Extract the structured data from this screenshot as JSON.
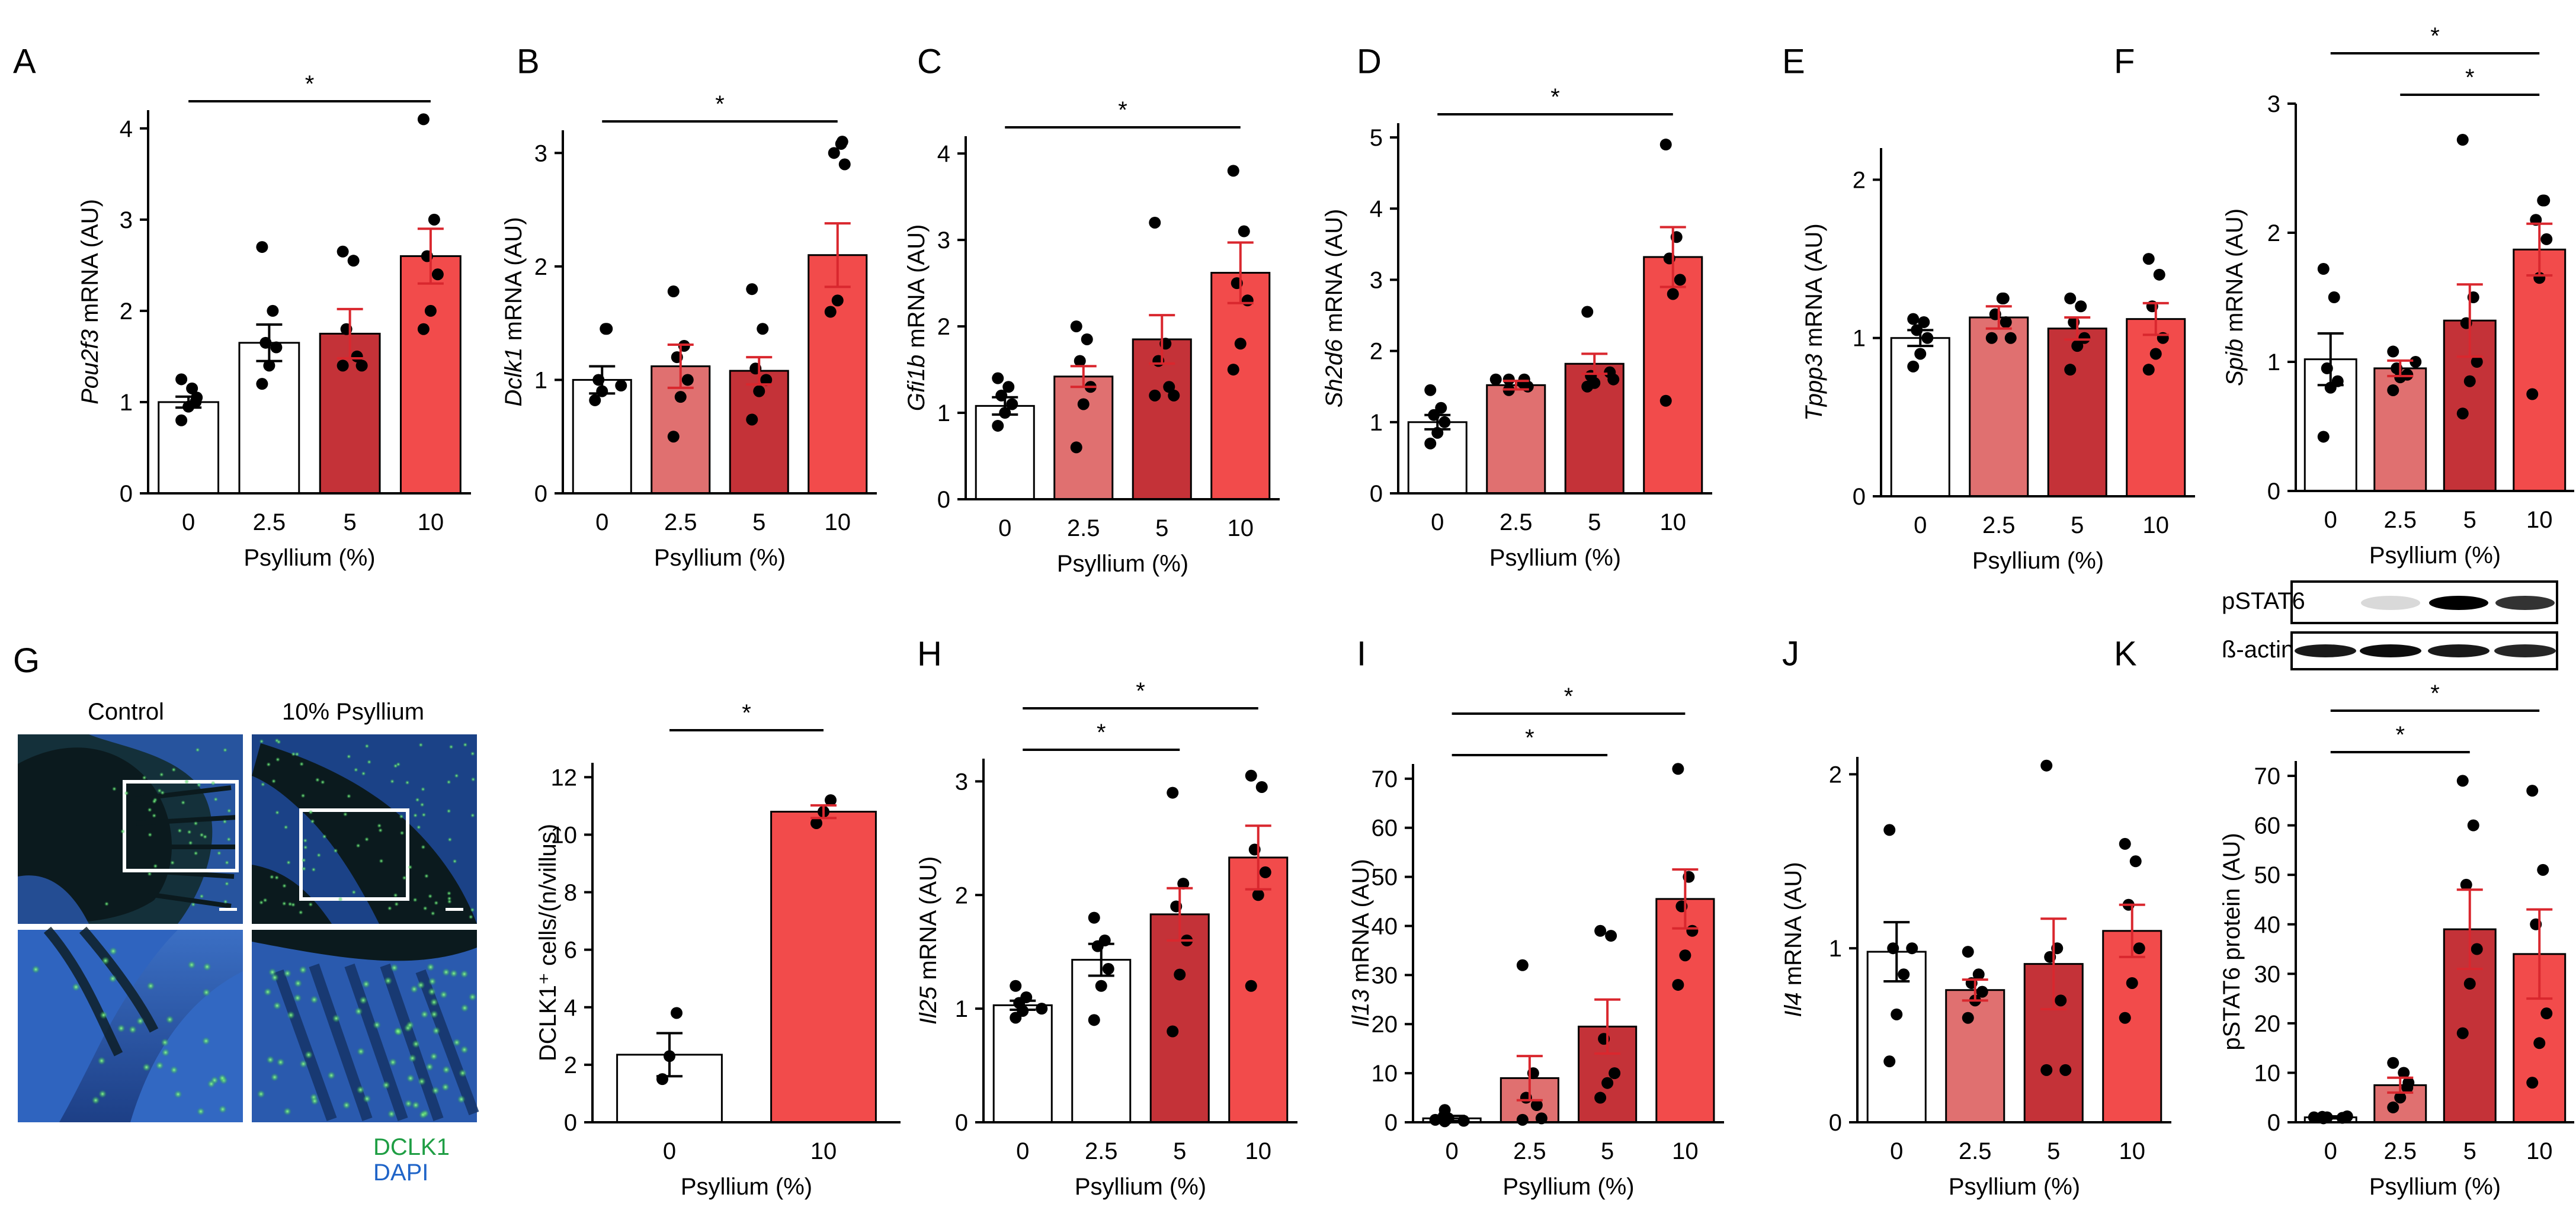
{
  "colors": {
    "c0": "#ffffff",
    "c1": "#e07070",
    "c2": "#c43238",
    "c3": "#f24b4b",
    "err": "#d9272e",
    "dot": "#000000",
    "dclk1": "#1f9e44",
    "dapi": "#1f64c8",
    "tissue_bg": "#0d1f1a"
  },
  "chart_data": [
    {
      "id": "A",
      "type": "bar",
      "panel_label": "A",
      "ylabel_italic": "Pou2f3",
      "ylabel_rest": " mRNA (AU)",
      "xlabel": "Psyllium (%)",
      "categories": [
        "0",
        "2.5",
        "5",
        "10"
      ],
      "ylim": [
        0,
        4.2
      ],
      "yticks": [
        0,
        1,
        2,
        3,
        4
      ],
      "values": [
        1.0,
        1.65,
        1.75,
        2.6
      ],
      "errors": [
        0.06,
        0.2,
        0.27,
        0.3
      ],
      "fill_colors": [
        "#ffffff",
        "#ffffff",
        "#c43238",
        "#f24b4b"
      ],
      "points": [
        [
          0.8,
          0.95,
          1.0,
          1.05,
          1.15,
          1.25
        ],
        [
          1.2,
          1.4,
          1.6,
          1.65,
          2.0,
          2.7
        ],
        [
          1.4,
          1.4,
          1.5,
          1.8,
          2.55,
          2.65
        ],
        [
          1.8,
          2.0,
          2.4,
          2.6,
          3.0,
          4.1
        ]
      ],
      "sig": [
        {
          "from": 0,
          "to": 3,
          "label": "*"
        }
      ]
    },
    {
      "id": "B",
      "type": "bar",
      "panel_label": "B",
      "ylabel_italic": "Dclk1",
      "ylabel_rest": " mRNA (AU)",
      "xlabel": "Psyllium (%)",
      "categories": [
        "0",
        "2.5",
        "5",
        "10"
      ],
      "ylim": [
        0,
        3.2
      ],
      "yticks": [
        0,
        1,
        2,
        3
      ],
      "values": [
        1.0,
        1.12,
        1.08,
        2.1
      ],
      "errors": [
        0.12,
        0.19,
        0.12,
        0.28
      ],
      "fill_colors": [
        "#ffffff",
        "#e07070",
        "#c43238",
        "#f24b4b"
      ],
      "points": [
        [
          0.82,
          0.9,
          0.95,
          1.0,
          1.45,
          1.45
        ],
        [
          0.5,
          0.85,
          1.0,
          1.2,
          1.3,
          1.78
        ],
        [
          0.65,
          0.9,
          1.0,
          1.1,
          1.45,
          1.8
        ],
        [
          1.6,
          1.7,
          2.9,
          3.0,
          3.08,
          3.1
        ]
      ],
      "sig": [
        {
          "from": 0,
          "to": 3,
          "label": "*"
        }
      ]
    },
    {
      "id": "C",
      "type": "bar",
      "panel_label": "C",
      "ylabel_italic": "Gfi1b",
      "ylabel_rest": " mRNA (AU)",
      "xlabel": "Psyllium (%)",
      "categories": [
        "0",
        "2.5",
        "5",
        "10"
      ],
      "ylim": [
        0,
        4.2
      ],
      "yticks": [
        0,
        1,
        2,
        3,
        4
      ],
      "values": [
        1.08,
        1.42,
        1.85,
        2.62
      ],
      "errors": [
        0.1,
        0.12,
        0.28,
        0.35
      ],
      "fill_colors": [
        "#ffffff",
        "#e07070",
        "#c43238",
        "#f24b4b"
      ],
      "points": [
        [
          0.85,
          1.0,
          1.1,
          1.2,
          1.3,
          1.4
        ],
        [
          0.6,
          1.1,
          1.3,
          1.6,
          1.85,
          2.0
        ],
        [
          1.2,
          1.2,
          1.3,
          1.6,
          1.8,
          3.2
        ],
        [
          1.5,
          1.8,
          2.3,
          2.5,
          3.1,
          3.8
        ]
      ],
      "sig": [
        {
          "from": 0,
          "to": 3,
          "label": "*"
        }
      ]
    },
    {
      "id": "D",
      "type": "bar",
      "panel_label": "D",
      "ylabel_italic": "Sh2d6",
      "ylabel_rest": " mRNA (AU)",
      "xlabel": "Psyllium (%)",
      "categories": [
        "0",
        "2.5",
        "5",
        "10"
      ],
      "ylim": [
        0,
        5.2
      ],
      "yticks": [
        0,
        1,
        2,
        3,
        4,
        5
      ],
      "values": [
        1.0,
        1.52,
        1.82,
        3.32
      ],
      "errors": [
        0.1,
        0.06,
        0.14,
        0.42
      ],
      "fill_colors": [
        "#ffffff",
        "#e07070",
        "#c43238",
        "#f24b4b"
      ],
      "points": [
        [
          0.7,
          0.85,
          1.0,
          1.1,
          1.2,
          1.45
        ],
        [
          1.45,
          1.5,
          1.55,
          1.6,
          1.6,
          1.6
        ],
        [
          1.5,
          1.55,
          1.6,
          1.65,
          1.7,
          2.55
        ],
        [
          1.3,
          2.8,
          3.0,
          3.3,
          3.6,
          4.9
        ]
      ],
      "sig": [
        {
          "from": 0,
          "to": 3,
          "label": "*"
        }
      ]
    },
    {
      "id": "E",
      "type": "bar",
      "panel_label": "E",
      "ylabel_italic": "Tppp3",
      "ylabel_rest": " mRNA (AU)",
      "xlabel": "Psyllium (%)",
      "categories": [
        "0",
        "2.5",
        "5",
        "10"
      ],
      "ylim": [
        0,
        2.2
      ],
      "yticks": [
        0,
        1,
        2
      ],
      "values": [
        1.0,
        1.13,
        1.06,
        1.12
      ],
      "errors": [
        0.05,
        0.07,
        0.07,
        0.1
      ],
      "fill_colors": [
        "#ffffff",
        "#e07070",
        "#c43238",
        "#f24b4b"
      ],
      "points": [
        [
          0.82,
          0.9,
          1.0,
          1.05,
          1.1,
          1.12
        ],
        [
          1.0,
          1.0,
          1.1,
          1.15,
          1.25,
          1.25
        ],
        [
          0.8,
          0.95,
          1.0,
          1.1,
          1.2,
          1.25
        ],
        [
          0.8,
          0.9,
          1.0,
          1.2,
          1.4,
          1.5
        ]
      ],
      "sig": []
    },
    {
      "id": "F",
      "type": "bar",
      "panel_label": "F",
      "ylabel_italic": "Spib",
      "ylabel_rest": " mRNA (AU)",
      "xlabel": "Psyllium (%)",
      "categories": [
        "0",
        "2.5",
        "5",
        "10"
      ],
      "ylim": [
        0,
        3.0
      ],
      "yticks": [
        0,
        1,
        2,
        3
      ],
      "values": [
        1.02,
        0.95,
        1.32,
        1.87
      ],
      "errors": [
        0.2,
        0.06,
        0.28,
        0.2
      ],
      "fill_colors": [
        "#ffffff",
        "#e07070",
        "#c43238",
        "#f24b4b"
      ],
      "points": [
        [
          0.42,
          0.8,
          0.85,
          0.95,
          1.5,
          1.72
        ],
        [
          0.78,
          0.88,
          0.9,
          0.95,
          1.0,
          1.08
        ],
        [
          0.6,
          0.85,
          1.0,
          1.3,
          1.5,
          2.72
        ],
        [
          0.75,
          1.65,
          1.95,
          2.1,
          2.25,
          2.25
        ]
      ],
      "sig": [
        {
          "from": 0,
          "to": 3,
          "label": "*",
          "level": 1
        },
        {
          "from": 1,
          "to": 3,
          "label": "*",
          "level": 0
        }
      ]
    },
    {
      "id": "G",
      "type": "bar",
      "panel_label": "",
      "ylabel_italic": "",
      "ylabel_rest": "DCLK1⁺ cells/(n/villus)",
      "xlabel": "Psyllium (%)",
      "categories": [
        "0",
        "10"
      ],
      "ylim": [
        0,
        12.5
      ],
      "yticks": [
        0,
        2,
        4,
        6,
        8,
        10,
        12
      ],
      "values": [
        2.35,
        10.8
      ],
      "errors": [
        0.75,
        0.22
      ],
      "fill_colors": [
        "#ffffff",
        "#f24b4b"
      ],
      "points": [
        [
          1.5,
          2.3,
          3.8
        ],
        [
          10.4,
          10.8,
          11.2
        ]
      ],
      "sig": [
        {
          "from": 0,
          "to": 1,
          "label": "*"
        }
      ]
    },
    {
      "id": "H",
      "type": "bar",
      "panel_label": "H",
      "ylabel_italic": "Il25",
      "ylabel_rest": " mRNA (AU)",
      "xlabel": "Psyllium (%)",
      "categories": [
        "0",
        "2.5",
        "5",
        "10"
      ],
      "ylim": [
        0,
        3.2
      ],
      "yticks": [
        0,
        1,
        2,
        3
      ],
      "values": [
        1.03,
        1.43,
        1.83,
        2.33
      ],
      "errors": [
        0.04,
        0.14,
        0.23,
        0.28
      ],
      "fill_colors": [
        "#ffffff",
        "#ffffff",
        "#c43238",
        "#f24b4b"
      ],
      "points": [
        [
          0.92,
          0.98,
          1.0,
          1.05,
          1.1,
          1.2
        ],
        [
          0.9,
          1.2,
          1.35,
          1.55,
          1.6,
          1.8
        ],
        [
          0.8,
          1.3,
          1.6,
          1.9,
          2.1,
          2.9
        ],
        [
          1.2,
          2.0,
          2.2,
          2.4,
          2.95,
          3.05
        ]
      ],
      "sig": [
        {
          "from": 0,
          "to": 2,
          "label": "*",
          "level": 0
        },
        {
          "from": 0,
          "to": 3,
          "label": "*",
          "level": 1
        }
      ]
    },
    {
      "id": "I",
      "type": "bar",
      "panel_label": "I",
      "ylabel_italic": "Il13",
      "ylabel_rest": " mRNA (AU)",
      "xlabel": "Psyllium (%)",
      "categories": [
        "0",
        "2.5",
        "5",
        "10"
      ],
      "ylim": [
        0,
        73
      ],
      "yticks": [
        0,
        10,
        20,
        30,
        40,
        50,
        60,
        70
      ],
      "values": [
        0.8,
        9.0,
        19.5,
        45.5
      ],
      "errors": [
        0.5,
        4.5,
        5.5,
        6.0
      ],
      "fill_colors": [
        "#ffffff",
        "#e07070",
        "#c43238",
        "#f24b4b"
      ],
      "points": [
        [
          0.2,
          0.3,
          0.5,
          0.8,
          1.2,
          2.5
        ],
        [
          0.5,
          0.8,
          3.5,
          5.0,
          10.0,
          32.0
        ],
        [
          5.0,
          8.0,
          10.0,
          17.0,
          38.0,
          39.0
        ],
        [
          28.0,
          34.0,
          39.0,
          44.0,
          50.0,
          72.0
        ]
      ],
      "sig": [
        {
          "from": 0,
          "to": 2,
          "label": "*",
          "level": 0
        },
        {
          "from": 0,
          "to": 3,
          "label": "*",
          "level": 1
        }
      ]
    },
    {
      "id": "J",
      "type": "bar",
      "panel_label": "J",
      "ylabel_italic": "Il4",
      "ylabel_rest": " mRNA (AU)",
      "xlabel": "Psyllium (%)",
      "categories": [
        "0",
        "2.5",
        "5",
        "10"
      ],
      "ylim": [
        0,
        2.1
      ],
      "yticks": [
        0,
        1,
        2
      ],
      "values": [
        0.98,
        0.76,
        0.91,
        1.1
      ],
      "errors": [
        0.17,
        0.06,
        0.26,
        0.15
      ],
      "fill_colors": [
        "#ffffff",
        "#e07070",
        "#c43238",
        "#f24b4b"
      ],
      "points": [
        [
          0.35,
          0.62,
          0.85,
          1.0,
          1.0,
          1.68
        ],
        [
          0.6,
          0.7,
          0.75,
          0.8,
          0.85,
          0.98
        ],
        [
          0.3,
          0.3,
          0.7,
          0.95,
          1.0,
          2.05
        ],
        [
          0.6,
          0.8,
          1.0,
          1.25,
          1.5,
          1.6
        ]
      ],
      "sig": []
    },
    {
      "id": "K",
      "type": "bar",
      "panel_label": "K",
      "ylabel_italic": "",
      "ylabel_rest": "pSTAT6 protein (AU)",
      "xlabel": "Psyllium (%)",
      "categories": [
        "0",
        "2.5",
        "5",
        "10"
      ],
      "ylim": [
        0,
        73
      ],
      "yticks": [
        0,
        10,
        20,
        30,
        40,
        50,
        60,
        70
      ],
      "values": [
        1.0,
        7.5,
        39.0,
        34.0
      ],
      "errors": [
        0.2,
        1.5,
        8.0,
        9.0
      ],
      "fill_colors": [
        "#ffffff",
        "#e07070",
        "#c43238",
        "#f24b4b"
      ],
      "points": [
        [
          0.8,
          0.9,
          1.0,
          1.0,
          1.1,
          1.2
        ],
        [
          3.0,
          5.0,
          7.0,
          8.0,
          10.0,
          12.0
        ],
        [
          18.0,
          28.0,
          35.0,
          48.0,
          60.0,
          69.0
        ],
        [
          8.0,
          16.0,
          22.0,
          40.0,
          51.0,
          67.0
        ]
      ],
      "sig": [
        {
          "from": 0,
          "to": 2,
          "label": "*",
          "level": 0
        },
        {
          "from": 0,
          "to": 3,
          "label": "*",
          "level": 1
        }
      ]
    }
  ],
  "panel_G": {
    "letter": "G",
    "control_label": "Control",
    "treated_label": "10% Psyllium",
    "legend_dclk1": "DCLK1",
    "legend_dapi": "DAPI"
  },
  "blot": {
    "row1": "pSTAT6",
    "row2": "ß-actin",
    "pstat6_intensity": [
      0.0,
      0.15,
      1.0,
      0.8
    ],
    "actin_intensity": [
      0.9,
      0.95,
      0.9,
      0.85
    ]
  }
}
